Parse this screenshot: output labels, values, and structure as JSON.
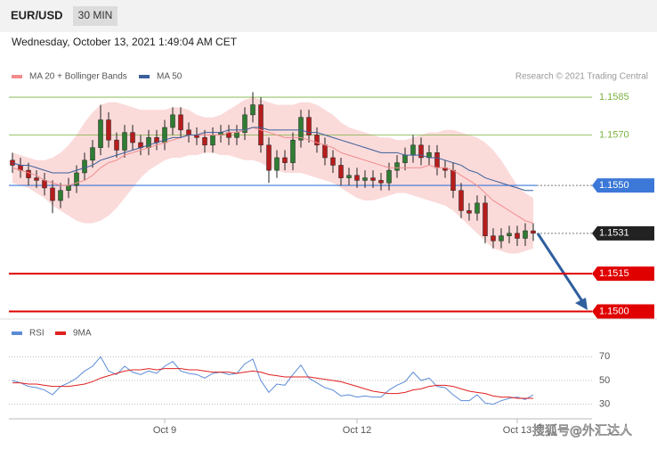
{
  "header": {
    "symbol": "EUR/USD",
    "timeframe": "30 MIN",
    "timestamp": "Wednesday, October 13, 2021 1:49:04 AM CET",
    "copyright": "Research © 2021 Trading Central",
    "watermark": "搜狐号@外汇达人"
  },
  "chart_data": [
    {
      "type": "candlestick",
      "up_color": "#2e7d32",
      "down_color": "#b71c1c",
      "ylim": [
        1.1497,
        1.1602
      ],
      "open": [
        1.156,
        1.1558,
        1.1556,
        1.1553,
        1.1552,
        1.1549,
        1.1544,
        1.1548,
        1.155,
        1.1555,
        1.156,
        1.1565,
        1.1576,
        1.1568,
        1.1564,
        1.1571,
        1.1567,
        1.1565,
        1.1569,
        1.1567,
        1.1573,
        1.1578,
        1.1572,
        1.157,
        1.1569,
        1.1566,
        1.157,
        1.1571,
        1.1569,
        1.1571,
        1.1578,
        1.1582,
        1.1566,
        1.1556,
        1.1561,
        1.1559,
        1.1568,
        1.1577,
        1.157,
        1.1566,
        1.1561,
        1.1558,
        1.1553,
        1.1554,
        1.1552,
        1.1553,
        1.1552,
        1.1551,
        1.1556,
        1.1559,
        1.1562,
        1.1566,
        1.1561,
        1.1563,
        1.1557,
        1.1556,
        1.1548,
        1.154,
        1.1539,
        1.1543,
        1.153,
        1.1528,
        1.153,
        1.1531,
        1.1529,
        1.1532
      ],
      "high": [
        1.1563,
        1.1561,
        1.1559,
        1.1556,
        1.1555,
        1.1552,
        1.1551,
        1.1553,
        1.1558,
        1.1563,
        1.1568,
        1.1582,
        1.1579,
        1.1571,
        1.1574,
        1.1574,
        1.157,
        1.1572,
        1.1572,
        1.1576,
        1.1581,
        1.1581,
        1.1575,
        1.1573,
        1.1572,
        1.1573,
        1.1574,
        1.1574,
        1.1574,
        1.1581,
        1.1587,
        1.1585,
        1.1569,
        1.1564,
        1.1564,
        1.1571,
        1.158,
        1.158,
        1.1573,
        1.1569,
        1.1564,
        1.1561,
        1.1557,
        1.1557,
        1.1556,
        1.1556,
        1.1555,
        1.1559,
        1.1562,
        1.1565,
        1.157,
        1.1569,
        1.1566,
        1.1566,
        1.156,
        1.1559,
        1.1551,
        1.1543,
        1.1546,
        1.1546,
        1.1533,
        1.1533,
        1.1534,
        1.1534,
        1.1535,
        1.1535
      ],
      "low": [
        1.1555,
        1.1553,
        1.155,
        1.1549,
        1.1546,
        1.1539,
        1.1541,
        1.1545,
        1.1547,
        1.1552,
        1.1557,
        1.1562,
        1.1565,
        1.1561,
        1.1561,
        1.1564,
        1.1562,
        1.1562,
        1.1564,
        1.1564,
        1.157,
        1.1569,
        1.1567,
        1.1566,
        1.1563,
        1.1563,
        1.1567,
        1.1566,
        1.1566,
        1.1568,
        1.1575,
        1.1563,
        1.1551,
        1.1553,
        1.1556,
        1.1556,
        1.1565,
        1.1567,
        1.1563,
        1.1558,
        1.1555,
        1.155,
        1.155,
        1.1549,
        1.1549,
        1.1549,
        1.1548,
        1.1548,
        1.1553,
        1.1556,
        1.1559,
        1.1558,
        1.1558,
        1.1554,
        1.1553,
        1.1545,
        1.1537,
        1.1536,
        1.1536,
        1.1527,
        1.1525,
        1.1525,
        1.1527,
        1.1526,
        1.1526,
        1.1528
      ],
      "close": [
        1.1558,
        1.1556,
        1.1553,
        1.1552,
        1.1549,
        1.1544,
        1.1548,
        1.155,
        1.1555,
        1.156,
        1.1565,
        1.1576,
        1.1568,
        1.1564,
        1.1571,
        1.1567,
        1.1565,
        1.1569,
        1.1567,
        1.1573,
        1.1578,
        1.1572,
        1.157,
        1.1569,
        1.1566,
        1.157,
        1.1571,
        1.1569,
        1.1571,
        1.1578,
        1.1582,
        1.1566,
        1.1556,
        1.1561,
        1.1559,
        1.1568,
        1.1577,
        1.157,
        1.1566,
        1.1561,
        1.1558,
        1.1553,
        1.1554,
        1.1552,
        1.1553,
        1.1552,
        1.1551,
        1.1556,
        1.1559,
        1.1562,
        1.1566,
        1.1561,
        1.1563,
        1.1557,
        1.1556,
        1.1548,
        1.154,
        1.1539,
        1.1543,
        1.153,
        1.1528,
        1.153,
        1.1531,
        1.1529,
        1.1532,
        1.1531
      ],
      "series": [
        {
          "name": "MA 20 + Bollinger Bands",
          "color": "#f08c8c",
          "band_color": "#fbdada",
          "values": [
            1.1557,
            1.1556,
            1.1555,
            1.1554,
            1.1552,
            1.1551,
            1.155,
            1.155,
            1.1551,
            1.1552,
            1.1554,
            1.1557,
            1.1559,
            1.156,
            1.1562,
            1.1563,
            1.1564,
            1.1565,
            1.1566,
            1.1567,
            1.1568,
            1.1569,
            1.157,
            1.157,
            1.157,
            1.157,
            1.157,
            1.1571,
            1.1571,
            1.1572,
            1.1573,
            1.1572,
            1.1571,
            1.157,
            1.1569,
            1.1569,
            1.1569,
            1.1568,
            1.1567,
            1.1566,
            1.1565,
            1.1563,
            1.1562,
            1.1561,
            1.156,
            1.1559,
            1.1558,
            1.1557,
            1.1557,
            1.1557,
            1.1557,
            1.1557,
            1.1558,
            1.1557,
            1.1557,
            1.1556,
            1.1554,
            1.1552,
            1.155,
            1.1547,
            1.1544,
            1.1542,
            1.154,
            1.1538,
            1.1536,
            1.1535
          ],
          "upper": [
            1.1563,
            1.1562,
            1.1561,
            1.156,
            1.156,
            1.1561,
            1.1563,
            1.1566,
            1.157,
            1.1575,
            1.1579,
            1.1582,
            1.1583,
            1.1583,
            1.1582,
            1.1581,
            1.158,
            1.158,
            1.158,
            1.158,
            1.1581,
            1.1581,
            1.158,
            1.1578,
            1.1577,
            1.1577,
            1.1578,
            1.158,
            1.1582,
            1.1584,
            1.1585,
            1.1584,
            1.1583,
            1.1582,
            1.1582,
            1.1582,
            1.1583,
            1.1583,
            1.1582,
            1.158,
            1.1578,
            1.1575,
            1.1573,
            1.1572,
            1.1571,
            1.157,
            1.1569,
            1.1569,
            1.1568,
            1.1568,
            1.1569,
            1.157,
            1.1571,
            1.1571,
            1.1572,
            1.1572,
            1.1571,
            1.157,
            1.1569,
            1.1567,
            1.1564,
            1.156,
            1.1555,
            1.155,
            1.1547,
            1.1545
          ],
          "lower": [
            1.1551,
            1.155,
            1.1549,
            1.1547,
            1.1545,
            1.1542,
            1.154,
            1.1538,
            1.1536,
            1.1535,
            1.1535,
            1.1536,
            1.1538,
            1.1541,
            1.1545,
            1.1549,
            1.1553,
            1.1556,
            1.1558,
            1.156,
            1.1561,
            1.1561,
            1.1562,
            1.1562,
            1.1563,
            1.1563,
            1.1562,
            1.1562,
            1.1561,
            1.156,
            1.156,
            1.1559,
            1.1557,
            1.1556,
            1.1555,
            1.1555,
            1.1555,
            1.1554,
            1.1553,
            1.1552,
            1.1551,
            1.1549,
            1.1547,
            1.1545,
            1.1544,
            1.1544,
            1.1545,
            1.1546,
            1.1547,
            1.1547,
            1.1546,
            1.1545,
            1.1544,
            1.1543,
            1.1542,
            1.154,
            1.1537,
            1.1534,
            1.1531,
            1.1528,
            1.1525,
            1.1524,
            1.1523,
            1.1523,
            1.1524,
            1.1525
          ]
        },
        {
          "name": "MA 50",
          "color": "#3a5f9a",
          "values": [
            1.1559,
            1.1558,
            1.1558,
            1.1557,
            1.1556,
            1.1555,
            1.1555,
            1.1555,
            1.1556,
            1.1557,
            1.1558,
            1.156,
            1.1561,
            1.1562,
            1.1563,
            1.1564,
            1.1565,
            1.1566,
            1.1567,
            1.1568,
            1.1569,
            1.1569,
            1.157,
            1.157,
            1.1571,
            1.1571,
            1.1571,
            1.1572,
            1.1572,
            1.1572,
            1.1573,
            1.1573,
            1.1572,
            1.1572,
            1.1572,
            1.1572,
            1.1572,
            1.1571,
            1.1571,
            1.157,
            1.1569,
            1.1568,
            1.1567,
            1.1566,
            1.1565,
            1.1564,
            1.1563,
            1.1563,
            1.1563,
            1.1562,
            1.1562,
            1.1562,
            1.1561,
            1.1561,
            1.156,
            1.1559,
            1.1558,
            1.1556,
            1.1555,
            1.1553,
            1.1552,
            1.1551,
            1.155,
            1.1549,
            1.1548,
            1.1548
          ]
        }
      ],
      "levels": [
        {
          "value": 1.1585,
          "color": "#7cb342",
          "style": "thin"
        },
        {
          "value": 1.157,
          "label": "1.1570",
          "color": "#7cb342",
          "style": "thin"
        },
        {
          "value": 1.155,
          "label": "1.1550",
          "color": "#3c78d8",
          "style": "box"
        },
        {
          "value": 1.1531,
          "color": "#222222",
          "style": "dotted"
        },
        {
          "value": 1.1515,
          "color": "#e00000",
          "style": "thick"
        },
        {
          "value": 1.15,
          "label": "1.1500",
          "color": "#e00000",
          "style": "thick"
        }
      ]
    },
    {
      "type": "line",
      "ylim": [
        20,
        80
      ],
      "yticks": [
        30,
        50,
        70
      ],
      "grid": true,
      "categories": [
        null,
        null,
        null,
        null,
        null,
        null,
        null,
        null,
        null,
        null,
        null,
        null,
        null,
        null,
        null,
        null,
        null,
        null,
        null,
        "Oct 9",
        null,
        null,
        null,
        null,
        null,
        null,
        null,
        null,
        null,
        null,
        null,
        null,
        null,
        null,
        null,
        null,
        null,
        null,
        null,
        null,
        null,
        null,
        null,
        "Oct 12",
        null,
        null,
        null,
        null,
        null,
        null,
        null,
        null,
        null,
        null,
        null,
        null,
        null,
        null,
        null,
        null,
        null,
        null,
        null,
        "Oct 13",
        null,
        null
      ],
      "series": [
        {
          "name": "RSI",
          "color": "#5b8bd6",
          "values": [
            50,
            48,
            45,
            44,
            42,
            38,
            45,
            48,
            52,
            58,
            62,
            70,
            58,
            55,
            62,
            57,
            55,
            58,
            56,
            62,
            66,
            58,
            56,
            55,
            52,
            56,
            57,
            55,
            56,
            64,
            68,
            50,
            40,
            47,
            46,
            55,
            63,
            52,
            48,
            44,
            42,
            37,
            38,
            36,
            37,
            36,
            36,
            42,
            46,
            49,
            57,
            50,
            52,
            45,
            44,
            38,
            33,
            33,
            38,
            31,
            30,
            33,
            35,
            36,
            34,
            38
          ]
        },
        {
          "name": "9MA",
          "color": "#e02020",
          "values": [
            48,
            48,
            47,
            47,
            46,
            45,
            45,
            45,
            46,
            47,
            49,
            52,
            54,
            56,
            58,
            59,
            59,
            60,
            59,
            60,
            60,
            60,
            59,
            59,
            58,
            57,
            57,
            57,
            56,
            57,
            58,
            57,
            55,
            54,
            53,
            53,
            53,
            53,
            52,
            51,
            50,
            49,
            47,
            45,
            43,
            41,
            40,
            39,
            39,
            40,
            42,
            43,
            45,
            46,
            46,
            45,
            43,
            41,
            40,
            39,
            37,
            36,
            36,
            35,
            35,
            35
          ]
        }
      ]
    }
  ]
}
